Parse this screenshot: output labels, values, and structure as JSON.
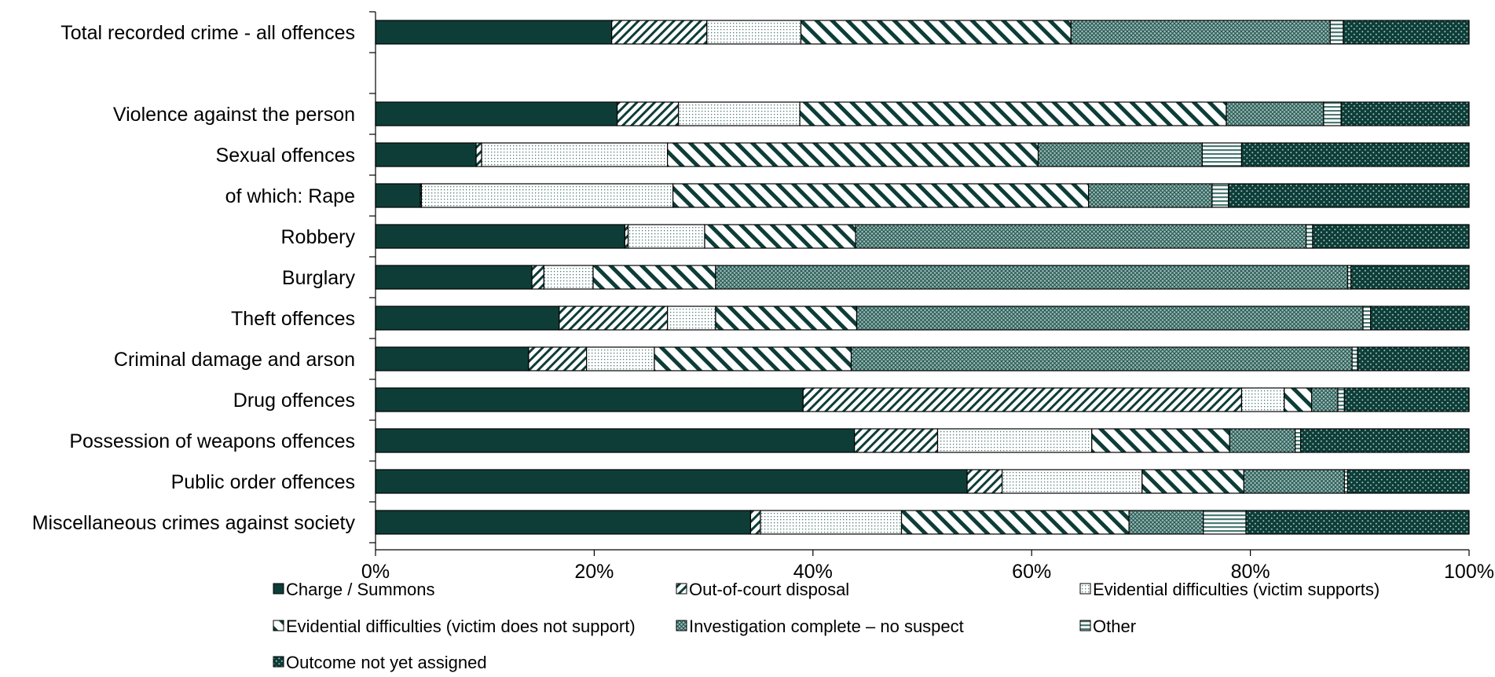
{
  "chart_data": {
    "type": "bar",
    "orientation": "horizontal",
    "stacked": true,
    "normalized": true,
    "title": "",
    "xlabel": "",
    "ylabel": "",
    "xlim": [
      0,
      100
    ],
    "x_ticks": [
      "0%",
      "20%",
      "40%",
      "60%",
      "80%",
      "100%"
    ],
    "grid": false,
    "legend_position": "bottom",
    "categories": [
      "Total recorded crime - all offences",
      "",
      "Violence against the person",
      "Sexual offences",
      "of which: Rape",
      "Robbery",
      "Burglary",
      "Theft offences",
      "Criminal damage and arson",
      "Drug offences",
      "Possession of weapons offences",
      "Public order offences",
      "Miscellaneous crimes against society"
    ],
    "series": [
      {
        "name": "Charge / Summons",
        "pattern": "solid",
        "values": [
          21.6,
          null,
          22.1,
          9.2,
          4.1,
          22.8,
          14.3,
          16.8,
          14.0,
          39.1,
          43.8,
          54.1,
          34.3
        ]
      },
      {
        "name": "Out-of-court disposal",
        "pattern": "diagonal",
        "values": [
          8.7,
          null,
          5.6,
          0.5,
          0.1,
          0.3,
          1.1,
          9.9,
          5.3,
          40.1,
          7.6,
          3.2,
          0.9
        ]
      },
      {
        "name": "Evidential difficulties (victim supports)",
        "pattern": "dots",
        "values": [
          8.6,
          null,
          11.1,
          17.0,
          23.0,
          7.0,
          4.5,
          4.4,
          6.2,
          3.9,
          14.1,
          12.8,
          12.9
        ]
      },
      {
        "name": "Evidential difficulties (victim does not support)",
        "pattern": "wide-diagonal",
        "values": [
          24.7,
          null,
          39.0,
          33.9,
          38.0,
          13.8,
          11.2,
          12.9,
          18.0,
          2.5,
          12.6,
          9.3,
          20.8
        ]
      },
      {
        "name": "Investigation complete – no suspect",
        "pattern": "crosshatch",
        "values": [
          23.7,
          null,
          8.9,
          15.0,
          11.3,
          41.2,
          57.8,
          46.3,
          45.8,
          2.4,
          6.0,
          9.2,
          6.8
        ]
      },
      {
        "name": "Other",
        "pattern": "horizontal",
        "values": [
          1.2,
          null,
          1.6,
          3.6,
          1.5,
          0.6,
          0.3,
          0.7,
          0.5,
          0.6,
          0.5,
          0.3,
          3.9
        ]
      },
      {
        "name": "Outcome not yet assigned",
        "pattern": "dark-dots",
        "values": [
          11.5,
          null,
          11.7,
          20.8,
          22.0,
          14.3,
          10.8,
          9.0,
          10.2,
          11.4,
          15.4,
          11.1,
          20.4
        ]
      }
    ]
  },
  "colors": {
    "dark": "#0e3d38",
    "mid": "#4c7a74",
    "light": "#ffffff",
    "outline": "#000000"
  }
}
